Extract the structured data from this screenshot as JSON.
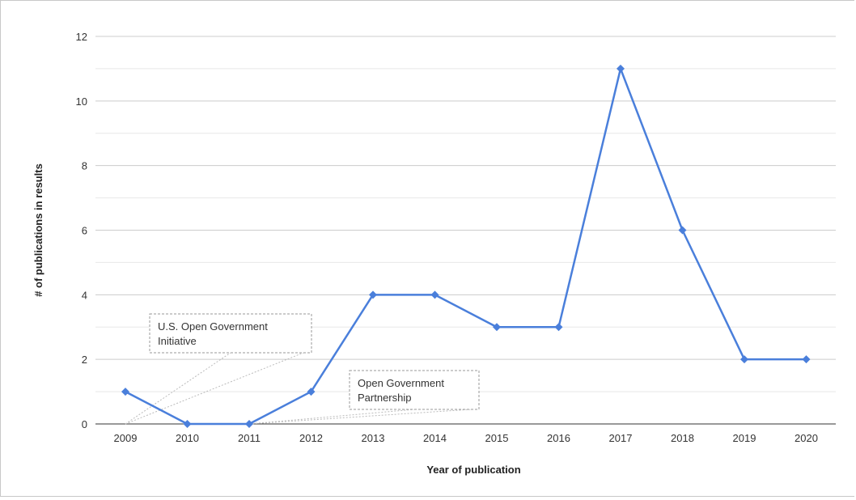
{
  "chart_data": {
    "type": "line",
    "title": "",
    "xlabel": "Year of publication",
    "ylabel": "# of publications in results",
    "categories": [
      "2009",
      "2010",
      "2011",
      "2012",
      "2013",
      "2014",
      "2015",
      "2016",
      "2017",
      "2018",
      "2019",
      "2020"
    ],
    "series": [
      {
        "values": [
          1,
          0,
          0,
          1,
          4,
          4,
          3,
          3,
          11,
          6,
          2,
          2
        ],
        "color": "#4a7fdb",
        "marker": "diamond"
      }
    ],
    "ylim": [
      0,
      12
    ],
    "yticks": [
      0,
      2,
      4,
      6,
      8,
      10,
      12
    ],
    "grid": "horizontal",
    "annotations": [
      {
        "lines": [
          "U.S. Open Government",
          "Initiative"
        ],
        "category": "2009"
      },
      {
        "lines": [
          "Open Government",
          "Partnership"
        ],
        "category": "2011"
      }
    ]
  }
}
